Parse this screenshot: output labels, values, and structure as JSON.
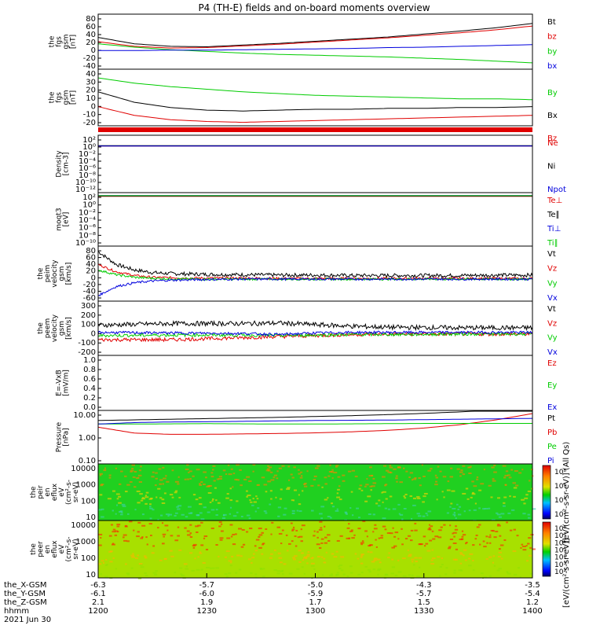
{
  "title": "P4 (TH-E) fields and on-board moments overview",
  "colors": {
    "black": "#000000",
    "red": "#e00000",
    "green": "#00cc00",
    "blue": "#0000dd"
  },
  "x_axis": {
    "ticks": [
      "1200",
      "1230",
      "1300",
      "1330",
      "1400"
    ],
    "row_labels": [
      "the_X-GSM",
      "the_Y-GSM",
      "the_Z-GSM",
      "hhmm",
      "2021 Jun 30"
    ],
    "rows": [
      [
        "-6.3",
        "-5.7",
        "-5.0",
        "-4.3",
        "-3.5"
      ],
      [
        "-6.1",
        "-6.0",
        "-5.9",
        "-5.7",
        "-5.4"
      ],
      [
        "2.1",
        "1.9",
        "1.7",
        "1.5",
        "1.2"
      ]
    ]
  },
  "chart_data": [
    {
      "type": "line",
      "ylabel": [
        "the",
        "fgs",
        "gsm",
        "[nT]"
      ],
      "ylim": [
        -40,
        90
      ],
      "yticks": [
        "80",
        "60",
        "40",
        "20",
        "0",
        "-20",
        "-40"
      ],
      "series": [
        {
          "name": "Bt",
          "color": "black",
          "x": [
            0,
            10,
            20,
            30,
            40,
            50,
            60,
            70,
            80,
            90,
            100,
            110,
            120
          ],
          "values": [
            35,
            20,
            14,
            13,
            17,
            21,
            26,
            31,
            36,
            43,
            50,
            58,
            68
          ]
        },
        {
          "name": "bz",
          "color": "red",
          "x": [
            0,
            10,
            20,
            30,
            40,
            50,
            60,
            70,
            80,
            90,
            100,
            110,
            120
          ],
          "values": [
            25,
            14,
            10,
            11,
            15,
            19,
            24,
            29,
            34,
            40,
            46,
            53,
            62
          ]
        },
        {
          "name": "by",
          "color": "green",
          "x": [
            0,
            10,
            20,
            30,
            40,
            50,
            60,
            70,
            80,
            90,
            100,
            110,
            120
          ],
          "values": [
            20,
            12,
            6,
            2,
            -2,
            -5,
            -7,
            -9,
            -11,
            -14,
            -17,
            -21,
            -25
          ]
        },
        {
          "name": "bx",
          "color": "blue",
          "x": [
            0,
            10,
            20,
            30,
            40,
            50,
            60,
            70,
            80,
            90,
            100,
            110,
            120
          ],
          "values": [
            4,
            4,
            5,
            5,
            6,
            7,
            8,
            9,
            11,
            12,
            14,
            16,
            18
          ]
        }
      ]
    },
    {
      "type": "line",
      "ylabel": [
        "the",
        "fgs",
        "gsm",
        "[nT]"
      ],
      "ylim": [
        -25,
        40
      ],
      "yticks": [
        "40",
        "30",
        "20",
        "10",
        "0",
        "-10",
        "-20"
      ],
      "series": [
        {
          "name": "By",
          "color": "green",
          "x": [
            0,
            10,
            20,
            30,
            40,
            50,
            60,
            70,
            80,
            90,
            100,
            110,
            120
          ],
          "values": [
            30,
            24,
            20,
            17,
            14,
            12,
            10,
            9,
            8,
            7,
            6,
            6,
            5
          ]
        },
        {
          "name": "Bx",
          "color": "black",
          "x": [
            0,
            10,
            20,
            30,
            40,
            50,
            60,
            70,
            80,
            90,
            100,
            110,
            120
          ],
          "values": [
            14,
            2,
            -4,
            -7,
            -8,
            -7,
            -6,
            -6,
            -5,
            -5,
            -4,
            -4,
            -3
          ]
        },
        {
          "name": "Bz",
          "color": "red",
          "x": [
            0,
            10,
            20,
            30,
            40,
            50,
            60,
            70,
            80,
            90,
            100,
            110,
            120
          ],
          "values": [
            -3,
            -13,
            -18,
            -20,
            -21,
            -20,
            -19,
            -18,
            -17,
            -16,
            -15,
            -14,
            -13
          ]
        }
      ]
    },
    {
      "type": "line",
      "ylabel": [
        "Density",
        "[cm-3]"
      ],
      "ylog": true,
      "ylim": [
        -13,
        3
      ],
      "yticks": [
        "10²",
        "10⁰",
        "10⁻²",
        "10⁻⁴",
        "10⁻⁶",
        "10⁻⁸",
        "10⁻¹⁰",
        "10⁻¹²"
      ],
      "series": [
        {
          "name": "Ne",
          "color": "red",
          "x": [
            0,
            120
          ],
          "values": [
            0,
            0
          ]
        },
        {
          "name": "Ni",
          "color": "black",
          "x": [
            0,
            120
          ],
          "values": [
            0.1,
            0.1
          ]
        },
        {
          "name": "Npot",
          "color": "blue",
          "x": [
            0,
            120
          ],
          "values": [
            0,
            0
          ]
        }
      ]
    },
    {
      "type": "line",
      "ylabel": [
        "moqt3",
        "[eV]"
      ],
      "ylog": true,
      "ylim": [
        -10,
        3
      ],
      "yticks": [
        "10²",
        "10⁰",
        "10⁻²",
        "10⁻⁴",
        "10⁻⁶",
        "10⁻⁸",
        "10⁻¹⁰"
      ],
      "series": [
        {
          "name": "Te⊥",
          "color": "red",
          "x": [
            0,
            120
          ],
          "values": [
            2.1,
            2.1
          ]
        },
        {
          "name": "Te∥",
          "color": "black",
          "x": [
            0,
            120
          ],
          "values": [
            2.2,
            2.2
          ]
        },
        {
          "name": "Ti⊥",
          "color": "blue",
          "x": [
            0,
            120
          ],
          "values": [
            2.3,
            2.3
          ]
        },
        {
          "name": "Ti∥",
          "color": "green",
          "x": [
            0,
            120
          ],
          "values": [
            2.25,
            2.25
          ]
        }
      ]
    },
    {
      "type": "line",
      "ylabel": [
        "the",
        "peim",
        "velocity",
        "gsm",
        "[km/s]"
      ],
      "ylim": [
        -60,
        90
      ],
      "yticks": [
        "80",
        "60",
        "40",
        "20",
        "0",
        "-20",
        "-40",
        "-60"
      ],
      "series": [
        {
          "name": "Vt",
          "color": "black",
          "x": [
            0,
            5,
            10,
            15,
            20,
            25,
            30,
            40,
            50,
            60,
            70,
            80,
            90,
            100,
            110,
            120
          ],
          "values": [
            75,
            40,
            25,
            18,
            15,
            14,
            13,
            12,
            11,
            11,
            10,
            10,
            10,
            10,
            11,
            11
          ]
        },
        {
          "name": "Vz",
          "color": "red",
          "x": [
            0,
            5,
            10,
            15,
            20,
            25,
            30,
            40,
            50,
            60,
            70,
            80,
            90,
            100,
            110,
            120
          ],
          "values": [
            40,
            20,
            10,
            5,
            4,
            3,
            3,
            3,
            2,
            2,
            2,
            2,
            2,
            2,
            2,
            2
          ]
        },
        {
          "name": "Vy",
          "color": "green",
          "x": [
            0,
            5,
            10,
            15,
            20,
            25,
            30,
            40,
            50,
            60,
            70,
            80,
            90,
            100,
            110,
            120
          ],
          "values": [
            25,
            12,
            5,
            2,
            1,
            0,
            0,
            0,
            0,
            0,
            0,
            0,
            0,
            0,
            0,
            0
          ]
        },
        {
          "name": "Vx",
          "color": "blue",
          "x": [
            0,
            5,
            10,
            15,
            20,
            25,
            30,
            40,
            50,
            60,
            70,
            80,
            90,
            100,
            110,
            120
          ],
          "values": [
            -45,
            -20,
            -10,
            -5,
            -3,
            -2,
            -1,
            0,
            0,
            0,
            0,
            0,
            0,
            0,
            0,
            0
          ]
        }
      ]
    },
    {
      "type": "line",
      "ylabel": [
        "the",
        "peem",
        "velocity",
        "gsm",
        "[km/s]"
      ],
      "ylim": [
        -210,
        310
      ],
      "yticks": [
        "300",
        "200",
        "100",
        "0",
        "-100",
        "-200"
      ],
      "series": [
        {
          "name": "Vt",
          "color": "black",
          "x": [
            0,
            20,
            40,
            50,
            60,
            70,
            80,
            100,
            120
          ],
          "values": [
            80,
            95,
            95,
            100,
            85,
            70,
            60,
            55,
            55
          ]
        },
        {
          "name": "Vz",
          "color": "red",
          "x": [
            0,
            20,
            40,
            50,
            60,
            70,
            80,
            100,
            120
          ],
          "values": [
            -60,
            -60,
            -40,
            -30,
            -20,
            -10,
            -5,
            -5,
            -5
          ]
        },
        {
          "name": "Vy",
          "color": "green",
          "x": [
            0,
            20,
            40,
            50,
            60,
            70,
            80,
            100,
            120
          ],
          "values": [
            -20,
            -15,
            -15,
            -20,
            -15,
            -10,
            -10,
            -5,
            -5
          ]
        },
        {
          "name": "Vx",
          "color": "blue",
          "x": [
            0,
            20,
            40,
            50,
            60,
            70,
            80,
            100,
            120
          ],
          "values": [
            10,
            5,
            0,
            -10,
            5,
            10,
            10,
            10,
            10
          ]
        }
      ]
    },
    {
      "type": "line",
      "ylabel": [
        "E=-VxB",
        "[mV/m]"
      ],
      "ylim": [
        0,
        1
      ],
      "yticks": [
        "1.0",
        "0.8",
        "0.6",
        "0.4",
        "0.2",
        "0.0"
      ],
      "series": [
        {
          "name": "Ez",
          "color": "red",
          "x": [],
          "values": []
        },
        {
          "name": "Ey",
          "color": "green",
          "x": [],
          "values": []
        },
        {
          "name": "Ex",
          "color": "blue",
          "x": [],
          "values": []
        }
      ]
    },
    {
      "type": "line",
      "ylabel": [
        "Pressure",
        "[nPa]"
      ],
      "ylog": true,
      "ylim": [
        -1.35,
        1.2
      ],
      "yticks": [
        "10.00",
        "1.00",
        "0.10"
      ],
      "series": [
        {
          "name": "Pt",
          "color": "black",
          "x": [
            0,
            10,
            20,
            30,
            40,
            50,
            60,
            70,
            80,
            90,
            100,
            110,
            120
          ],
          "values": [
            0.72,
            0.75,
            0.78,
            0.81,
            0.84,
            0.87,
            0.91,
            0.95,
            1.0,
            1.06,
            1.13,
            1.22,
            1.35
          ]
        },
        {
          "name": "Pb",
          "color": "red",
          "x": [
            0,
            10,
            20,
            30,
            40,
            50,
            60,
            70,
            80,
            90,
            100,
            110,
            120
          ],
          "values": [
            0.4,
            0.12,
            0.06,
            0.06,
            0.08,
            0.1,
            0.13,
            0.18,
            0.25,
            0.36,
            0.52,
            0.75,
            1.05
          ]
        },
        {
          "name": "Pe",
          "color": "green",
          "x": [
            0,
            10,
            20,
            30,
            40,
            50,
            60,
            70,
            80,
            90,
            100,
            110,
            120
          ],
          "values": [
            0.55,
            0.55,
            0.56,
            0.57,
            0.56,
            0.55,
            0.55,
            0.56,
            0.57,
            0.58,
            0.58,
            0.58,
            0.58
          ]
        },
        {
          "name": "Pi",
          "color": "blue",
          "x": [
            0,
            10,
            20,
            30,
            40,
            50,
            60,
            70,
            80,
            90,
            100,
            110,
            120
          ],
          "values": [
            0.55,
            0.62,
            0.65,
            0.66,
            0.68,
            0.7,
            0.72,
            0.73,
            0.74,
            0.76,
            0.78,
            0.8,
            0.82
          ]
        }
      ]
    },
    {
      "type": "heatmap",
      "ylabel": [
        "the",
        "peir",
        "en",
        "eflux",
        "eV",
        "(cm²-s-",
        "sr-eV)"
      ],
      "ylog": true,
      "yticks": [
        "10000",
        "1000",
        "100",
        "10"
      ],
      "colorbar": {
        "label": "[eV/(cm²-s-sr-eV)] (All Qs)",
        "ticks": [
          "10⁸",
          "10⁶",
          "10⁴",
          "10²"
        ]
      }
    },
    {
      "type": "heatmap",
      "ylabel": [
        "the",
        "peer",
        "en",
        "eflux",
        "eV",
        "(cm²-s-",
        "sr-eV)"
      ],
      "ylog": true,
      "yticks": [
        "10000",
        "1000",
        "100",
        "10"
      ],
      "colorbar": {
        "label": "[eV/(cm²-s-sr-eV)]",
        "ticks": [
          "10⁸",
          "10⁷",
          "10⁶",
          "10⁵",
          "10⁴",
          "10³",
          "10²"
        ]
      }
    }
  ]
}
